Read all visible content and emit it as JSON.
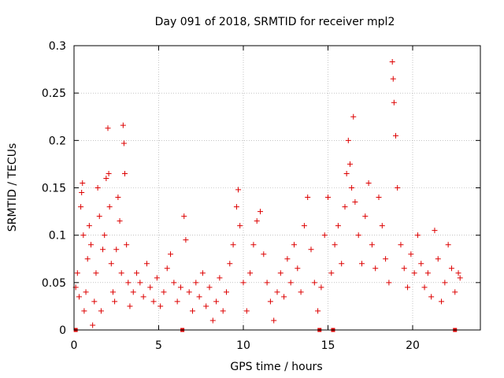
{
  "chart_data": {
    "type": "scatter",
    "title": "Day 091 of 2018, SRMTID for receiver mpl2",
    "xlabel": "GPS time / hours",
    "ylabel": "SRMTID / TECUs",
    "xlim": [
      0,
      24
    ],
    "ylim": [
      0,
      0.3
    ],
    "x_ticks": [
      0,
      5,
      10,
      15,
      20
    ],
    "x_tick_labels": [
      "0",
      "5",
      "10",
      "15",
      "20"
    ],
    "y_ticks": [
      0,
      0.05,
      0.1,
      0.15,
      0.2,
      0.25,
      0.3
    ],
    "y_tick_labels": [
      "0",
      "0.05",
      "0.1",
      "0.15",
      "0.2",
      "0.25",
      "0.3"
    ],
    "grid": true,
    "marker": "plus",
    "color": "#dd0000",
    "gap_markers_x": [
      0.1,
      6.4,
      14.5,
      15.3,
      22.5
    ],
    "series": [
      {
        "name": "SRMTID",
        "points": [
          [
            0.1,
            0.045
          ],
          [
            0.2,
            0.06
          ],
          [
            0.3,
            0.035
          ],
          [
            0.4,
            0.13
          ],
          [
            0.45,
            0.145
          ],
          [
            0.5,
            0.155
          ],
          [
            0.55,
            0.1
          ],
          [
            0.6,
            0.02
          ],
          [
            0.7,
            0.04
          ],
          [
            0.8,
            0.075
          ],
          [
            0.9,
            0.11
          ],
          [
            1.0,
            0.09
          ],
          [
            1.1,
            0.005
          ],
          [
            1.2,
            0.03
          ],
          [
            1.3,
            0.06
          ],
          [
            1.4,
            0.15
          ],
          [
            1.5,
            0.12
          ],
          [
            1.6,
            0.02
          ],
          [
            1.7,
            0.085
          ],
          [
            1.8,
            0.1
          ],
          [
            1.9,
            0.16
          ],
          [
            2.0,
            0.213
          ],
          [
            2.05,
            0.165
          ],
          [
            2.1,
            0.13
          ],
          [
            2.2,
            0.07
          ],
          [
            2.3,
            0.04
          ],
          [
            2.4,
            0.03
          ],
          [
            2.5,
            0.085
          ],
          [
            2.6,
            0.14
          ],
          [
            2.7,
            0.115
          ],
          [
            2.8,
            0.06
          ],
          [
            2.9,
            0.216
          ],
          [
            2.95,
            0.197
          ],
          [
            3.0,
            0.165
          ],
          [
            3.1,
            0.09
          ],
          [
            3.2,
            0.05
          ],
          [
            3.3,
            0.025
          ],
          [
            3.5,
            0.04
          ],
          [
            3.7,
            0.06
          ],
          [
            3.9,
            0.05
          ],
          [
            4.1,
            0.035
          ],
          [
            4.3,
            0.07
          ],
          [
            4.5,
            0.045
          ],
          [
            4.7,
            0.03
          ],
          [
            4.9,
            0.055
          ],
          [
            5.1,
            0.025
          ],
          [
            5.3,
            0.04
          ],
          [
            5.5,
            0.065
          ],
          [
            5.7,
            0.08
          ],
          [
            5.9,
            0.05
          ],
          [
            6.1,
            0.03
          ],
          [
            6.3,
            0.045
          ],
          [
            6.5,
            0.12
          ],
          [
            6.6,
            0.095
          ],
          [
            6.8,
            0.04
          ],
          [
            7.0,
            0.02
          ],
          [
            7.2,
            0.05
          ],
          [
            7.4,
            0.035
          ],
          [
            7.6,
            0.06
          ],
          [
            7.8,
            0.025
          ],
          [
            8.0,
            0.045
          ],
          [
            8.2,
            0.01
          ],
          [
            8.4,
            0.03
          ],
          [
            8.6,
            0.055
          ],
          [
            8.8,
            0.02
          ],
          [
            9.0,
            0.04
          ],
          [
            9.2,
            0.07
          ],
          [
            9.4,
            0.09
          ],
          [
            9.6,
            0.13
          ],
          [
            9.7,
            0.148
          ],
          [
            9.8,
            0.11
          ],
          [
            10.0,
            0.05
          ],
          [
            10.2,
            0.02
          ],
          [
            10.4,
            0.06
          ],
          [
            10.6,
            0.09
          ],
          [
            10.8,
            0.115
          ],
          [
            11.0,
            0.125
          ],
          [
            11.2,
            0.08
          ],
          [
            11.4,
            0.05
          ],
          [
            11.6,
            0.03
          ],
          [
            11.8,
            0.01
          ],
          [
            12.0,
            0.04
          ],
          [
            12.2,
            0.06
          ],
          [
            12.4,
            0.035
          ],
          [
            12.6,
            0.075
          ],
          [
            12.8,
            0.05
          ],
          [
            13.0,
            0.09
          ],
          [
            13.2,
            0.065
          ],
          [
            13.4,
            0.04
          ],
          [
            13.6,
            0.11
          ],
          [
            13.8,
            0.14
          ],
          [
            14.0,
            0.085
          ],
          [
            14.2,
            0.05
          ],
          [
            14.4,
            0.02
          ],
          [
            14.6,
            0.045
          ],
          [
            14.8,
            0.1
          ],
          [
            15.0,
            0.14
          ],
          [
            15.2,
            0.06
          ],
          [
            15.4,
            0.09
          ],
          [
            15.6,
            0.11
          ],
          [
            15.8,
            0.07
          ],
          [
            16.0,
            0.13
          ],
          [
            16.1,
            0.165
          ],
          [
            16.2,
            0.2
          ],
          [
            16.3,
            0.175
          ],
          [
            16.4,
            0.15
          ],
          [
            16.5,
            0.225
          ],
          [
            16.6,
            0.135
          ],
          [
            16.8,
            0.1
          ],
          [
            17.0,
            0.07
          ],
          [
            17.2,
            0.12
          ],
          [
            17.4,
            0.155
          ],
          [
            17.6,
            0.09
          ],
          [
            17.8,
            0.065
          ],
          [
            18.0,
            0.14
          ],
          [
            18.2,
            0.11
          ],
          [
            18.4,
            0.075
          ],
          [
            18.6,
            0.05
          ],
          [
            18.8,
            0.283
          ],
          [
            18.85,
            0.265
          ],
          [
            18.9,
            0.24
          ],
          [
            19.0,
            0.205
          ],
          [
            19.1,
            0.15
          ],
          [
            19.3,
            0.09
          ],
          [
            19.5,
            0.065
          ],
          [
            19.7,
            0.045
          ],
          [
            19.9,
            0.08
          ],
          [
            20.1,
            0.06
          ],
          [
            20.3,
            0.1
          ],
          [
            20.5,
            0.07
          ],
          [
            20.7,
            0.045
          ],
          [
            20.9,
            0.06
          ],
          [
            21.1,
            0.035
          ],
          [
            21.3,
            0.105
          ],
          [
            21.5,
            0.075
          ],
          [
            21.7,
            0.03
          ],
          [
            21.9,
            0.05
          ],
          [
            22.1,
            0.09
          ],
          [
            22.3,
            0.065
          ],
          [
            22.5,
            0.04
          ],
          [
            22.7,
            0.06
          ],
          [
            22.8,
            0.055
          ]
        ]
      }
    ]
  }
}
